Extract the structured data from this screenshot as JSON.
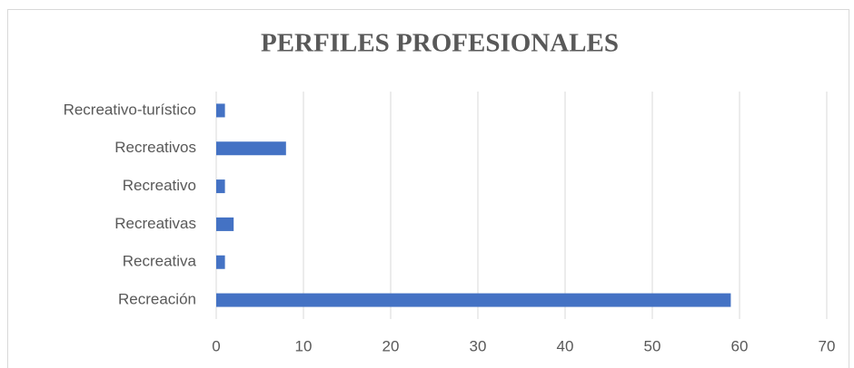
{
  "chart_data": {
    "type": "bar",
    "orientation": "horizontal",
    "title": "PERFILES PROFESIONALES",
    "categories": [
      "Recreativo-turístico",
      "Recreativos",
      "Recreativo",
      "Recreativas",
      "Recreativa",
      "Recreación"
    ],
    "values": [
      1,
      8,
      1,
      2,
      1,
      59
    ],
    "color": "#4472c4",
    "xlim": [
      0,
      70
    ],
    "xticks": [
      0,
      10,
      20,
      30,
      40,
      50,
      60,
      70
    ],
    "grid": true
  }
}
